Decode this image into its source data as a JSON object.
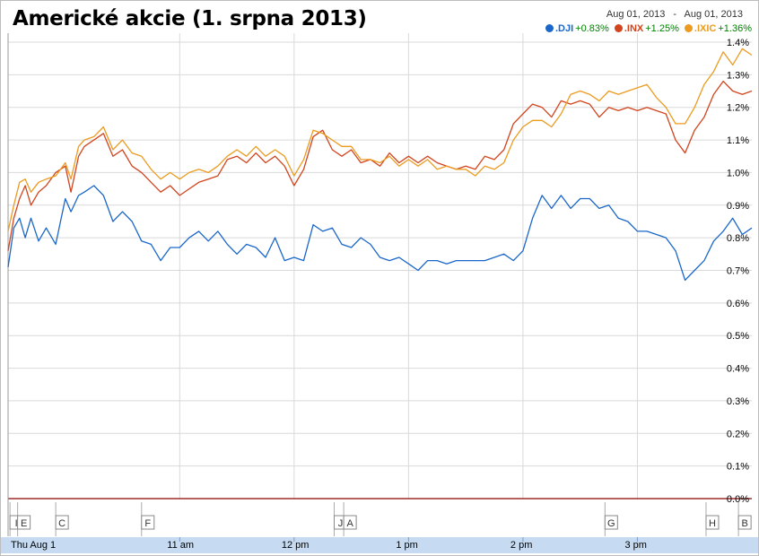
{
  "title": "Americké akcie (1. srpna 2013)",
  "date_range": {
    "from": "Aug 01, 2013",
    "separator": "-",
    "to": "Aug 01, 2013"
  },
  "legend": [
    {
      "name": ".DJI",
      "change": "+0.83%",
      "color": "#1a67c9"
    },
    {
      "name": ".INX",
      "change": "+1.25%",
      "color": "#d1441d"
    },
    {
      "name": ".IXIC",
      "change": "+1.36%",
      "color": "#eb9b1f"
    }
  ],
  "colors": {
    "change_positive": "#008000",
    "grid": "#d9d9d9",
    "time_bar": "#c6dbf1",
    "baseline": "#8b0000"
  },
  "chart_data": {
    "type": "line",
    "x_unit": "minutes from 9:30 am",
    "xlim": [
      0,
      390
    ],
    "ylim": [
      0,
      1.4
    ],
    "y_ticks": [
      {
        "value": 0.0,
        "label": "0.0%"
      },
      {
        "value": 0.1,
        "label": "0.1%"
      },
      {
        "value": 0.2,
        "label": "0.2%"
      },
      {
        "value": 0.3,
        "label": "0.3%"
      },
      {
        "value": 0.4,
        "label": "0.4%"
      },
      {
        "value": 0.5,
        "label": "0.5%"
      },
      {
        "value": 0.6,
        "label": "0.6%"
      },
      {
        "value": 0.7,
        "label": "0.7%"
      },
      {
        "value": 0.8,
        "label": "0.8%"
      },
      {
        "value": 0.9,
        "label": "0.9%"
      },
      {
        "value": 1.0,
        "label": "1.0%"
      },
      {
        "value": 1.1,
        "label": "1.1%"
      },
      {
        "value": 1.2,
        "label": "1.2%"
      },
      {
        "value": 1.3,
        "label": "1.3%"
      },
      {
        "value": 1.4,
        "label": "1.4%"
      }
    ],
    "x_ticks": [
      {
        "x": 0,
        "label": "Thu Aug 1"
      },
      {
        "x": 90,
        "label": "11 am"
      },
      {
        "x": 150,
        "label": "12 pm"
      },
      {
        "x": 210,
        "label": "1 pm"
      },
      {
        "x": 270,
        "label": "2 pm"
      },
      {
        "x": 330,
        "label": "3 pm"
      }
    ],
    "flags": [
      {
        "x": 1,
        "label": "I"
      },
      {
        "x": 5,
        "label": "E"
      },
      {
        "x": 25,
        "label": "C"
      },
      {
        "x": 70,
        "label": "F"
      },
      {
        "x": 171,
        "label": "J"
      },
      {
        "x": 176,
        "label": "A"
      },
      {
        "x": 313,
        "label": "G"
      },
      {
        "x": 366,
        "label": "H"
      },
      {
        "x": 383,
        "label": "B"
      }
    ],
    "series": [
      {
        "name": ".DJI",
        "color": "#1a67c9",
        "x": [
          0,
          3,
          6,
          9,
          12,
          16,
          20,
          25,
          30,
          33,
          37,
          40,
          45,
          50,
          55,
          60,
          65,
          70,
          75,
          80,
          85,
          90,
          95,
          100,
          105,
          110,
          115,
          120,
          125,
          130,
          135,
          140,
          145,
          150,
          155,
          160,
          165,
          170,
          175,
          180,
          185,
          190,
          195,
          200,
          205,
          210,
          215,
          220,
          225,
          230,
          235,
          240,
          245,
          250,
          255,
          260,
          265,
          270,
          275,
          280,
          285,
          290,
          295,
          300,
          305,
          310,
          315,
          320,
          325,
          330,
          335,
          340,
          345,
          350,
          355,
          360,
          365,
          370,
          375,
          380,
          385,
          390
        ],
        "y": [
          0.71,
          0.83,
          0.86,
          0.8,
          0.86,
          0.79,
          0.83,
          0.78,
          0.92,
          0.88,
          0.93,
          0.94,
          0.96,
          0.93,
          0.85,
          0.88,
          0.85,
          0.79,
          0.78,
          0.73,
          0.77,
          0.77,
          0.8,
          0.82,
          0.79,
          0.82,
          0.78,
          0.75,
          0.78,
          0.77,
          0.74,
          0.8,
          0.73,
          0.74,
          0.73,
          0.84,
          0.82,
          0.83,
          0.78,
          0.77,
          0.8,
          0.78,
          0.74,
          0.73,
          0.74,
          0.72,
          0.7,
          0.73,
          0.73,
          0.72,
          0.73,
          0.73,
          0.73,
          0.73,
          0.74,
          0.75,
          0.73,
          0.76,
          0.86,
          0.93,
          0.89,
          0.93,
          0.89,
          0.92,
          0.92,
          0.89,
          0.9,
          0.86,
          0.85,
          0.82,
          0.82,
          0.81,
          0.8,
          0.76,
          0.67,
          0.7,
          0.73,
          0.79,
          0.82,
          0.86,
          0.81,
          0.83
        ]
      },
      {
        "name": ".INX",
        "color": "#d1441d",
        "x": [
          0,
          3,
          6,
          9,
          12,
          16,
          20,
          25,
          30,
          33,
          37,
          40,
          45,
          50,
          55,
          60,
          65,
          70,
          75,
          80,
          85,
          90,
          95,
          100,
          105,
          110,
          115,
          120,
          125,
          130,
          135,
          140,
          145,
          150,
          155,
          160,
          165,
          170,
          175,
          180,
          185,
          190,
          195,
          200,
          205,
          210,
          215,
          220,
          225,
          230,
          235,
          240,
          245,
          250,
          255,
          260,
          265,
          270,
          275,
          280,
          285,
          290,
          295,
          300,
          305,
          310,
          315,
          320,
          325,
          330,
          335,
          340,
          345,
          350,
          355,
          360,
          365,
          370,
          375,
          380,
          385,
          390
        ],
        "y": [
          0.76,
          0.86,
          0.92,
          0.96,
          0.9,
          0.94,
          0.96,
          1.0,
          1.02,
          0.94,
          1.05,
          1.08,
          1.1,
          1.12,
          1.05,
          1.07,
          1.02,
          1.0,
          0.97,
          0.94,
          0.96,
          0.93,
          0.95,
          0.97,
          0.98,
          0.99,
          1.04,
          1.05,
          1.03,
          1.06,
          1.03,
          1.05,
          1.02,
          0.96,
          1.01,
          1.11,
          1.13,
          1.07,
          1.05,
          1.07,
          1.03,
          1.04,
          1.02,
          1.06,
          1.03,
          1.05,
          1.03,
          1.05,
          1.03,
          1.02,
          1.01,
          1.02,
          1.01,
          1.05,
          1.04,
          1.07,
          1.15,
          1.18,
          1.21,
          1.2,
          1.17,
          1.22,
          1.21,
          1.22,
          1.21,
          1.17,
          1.2,
          1.19,
          1.2,
          1.19,
          1.2,
          1.19,
          1.18,
          1.1,
          1.06,
          1.13,
          1.17,
          1.24,
          1.28,
          1.25,
          1.24,
          1.25
        ]
      },
      {
        "name": ".IXIC",
        "color": "#eb9b1f",
        "x": [
          0,
          3,
          6,
          9,
          12,
          16,
          20,
          25,
          30,
          33,
          37,
          40,
          45,
          50,
          55,
          60,
          65,
          70,
          75,
          80,
          85,
          90,
          95,
          100,
          105,
          110,
          115,
          120,
          125,
          130,
          135,
          140,
          145,
          150,
          155,
          160,
          165,
          170,
          175,
          180,
          185,
          190,
          195,
          200,
          205,
          210,
          215,
          220,
          225,
          230,
          235,
          240,
          245,
          250,
          255,
          260,
          265,
          270,
          275,
          280,
          285,
          290,
          295,
          300,
          305,
          310,
          315,
          320,
          325,
          330,
          335,
          340,
          345,
          350,
          355,
          360,
          365,
          370,
          375,
          380,
          385,
          390
        ],
        "y": [
          0.82,
          0.9,
          0.97,
          0.98,
          0.94,
          0.97,
          0.98,
          0.99,
          1.03,
          0.98,
          1.08,
          1.1,
          1.11,
          1.14,
          1.07,
          1.1,
          1.06,
          1.05,
          1.01,
          0.98,
          1.0,
          0.98,
          1.0,
          1.01,
          1.0,
          1.02,
          1.05,
          1.07,
          1.05,
          1.08,
          1.05,
          1.07,
          1.05,
          0.99,
          1.04,
          1.13,
          1.12,
          1.1,
          1.08,
          1.08,
          1.04,
          1.04,
          1.03,
          1.05,
          1.02,
          1.04,
          1.02,
          1.04,
          1.01,
          1.02,
          1.01,
          1.01,
          0.99,
          1.02,
          1.01,
          1.03,
          1.1,
          1.14,
          1.16,
          1.16,
          1.14,
          1.18,
          1.24,
          1.25,
          1.24,
          1.22,
          1.25,
          1.24,
          1.25,
          1.26,
          1.27,
          1.23,
          1.2,
          1.15,
          1.15,
          1.2,
          1.27,
          1.31,
          1.37,
          1.33,
          1.38,
          1.36
        ]
      }
    ]
  }
}
